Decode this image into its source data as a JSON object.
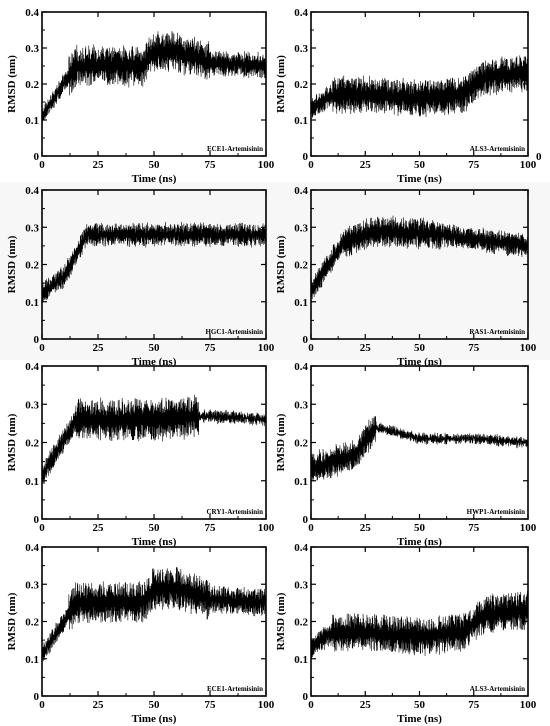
{
  "figure": {
    "background": "#ffffff",
    "line_color": "#000000"
  },
  "chart_data": [
    {
      "type": "line",
      "panel_label": "ECE1-Artemisinin",
      "xlabel": "Time (ns)",
      "ylabel": "RMSD (nm)",
      "xlim": [
        0,
        100
      ],
      "ylim": [
        0,
        0.4
      ],
      "xticks": [
        0,
        25,
        50,
        75,
        100
      ],
      "yticks": [
        0,
        0.1,
        0.2,
        0.3,
        0.4
      ],
      "grid": false,
      "profile": "ece1",
      "approx_mean_profile": {
        "x": [
          0,
          15,
          25,
          45,
          50,
          60,
          75,
          100
        ],
        "y": [
          0.11,
          0.25,
          0.25,
          0.25,
          0.29,
          0.29,
          0.26,
          0.25
        ]
      }
    },
    {
      "type": "line",
      "panel_label": "ALS3-Artemisinin",
      "xlabel": "Time (ns)",
      "ylabel": "RMSD (nm)",
      "xlim": [
        0,
        100
      ],
      "ylim": [
        0,
        0.4
      ],
      "xticks": [
        0,
        25,
        50,
        75,
        100
      ],
      "yticks": [
        0,
        0.1,
        0.2,
        0.3,
        0.4
      ],
      "grid": false,
      "profile": "als3",
      "extra_tick_label": "0",
      "approx_mean_profile": {
        "x": [
          0,
          10,
          25,
          50,
          70,
          80,
          100
        ],
        "y": [
          0.13,
          0.17,
          0.17,
          0.16,
          0.17,
          0.22,
          0.23
        ]
      }
    },
    {
      "type": "line",
      "panel_label": "HGC1-Artemisinin",
      "xlabel": "Time (ns)",
      "ylabel": "RMSD (nm)",
      "xlim": [
        0,
        100
      ],
      "ylim": [
        0,
        0.4
      ],
      "xticks": [
        0,
        25,
        50,
        75,
        100
      ],
      "yticks": [
        0,
        0.1,
        0.2,
        0.3,
        0.4
      ],
      "grid": false,
      "profile": "hgc1",
      "approx_mean_profile": {
        "x": [
          0,
          10,
          20,
          50,
          100
        ],
        "y": [
          0.12,
          0.17,
          0.28,
          0.28,
          0.28
        ]
      }
    },
    {
      "type": "line",
      "panel_label": "RAS1-Artemisinin",
      "xlabel": "Time (ns)",
      "ylabel": "RMSD (nm)",
      "xlim": [
        0,
        100
      ],
      "ylim": [
        0,
        0.4
      ],
      "xticks": [
        0,
        25,
        50,
        75,
        100
      ],
      "yticks": [
        0,
        0.1,
        0.2,
        0.3,
        0.4
      ],
      "grid": false,
      "profile": "ras1",
      "approx_mean_profile": {
        "x": [
          0,
          15,
          30,
          60,
          100
        ],
        "y": [
          0.13,
          0.26,
          0.29,
          0.28,
          0.25
        ]
      }
    },
    {
      "type": "line",
      "panel_label": "CRY1-Artemisinin",
      "xlabel": "Time (ns)",
      "ylabel": "RMSD (nm)",
      "xlim": [
        0,
        100
      ],
      "ylim": [
        0,
        0.4
      ],
      "xticks": [
        0,
        25,
        50,
        75,
        100
      ],
      "yticks": [
        0,
        0.1,
        0.2,
        0.3,
        0.4
      ],
      "grid": false,
      "profile": "cry1",
      "approx_mean_profile": {
        "x": [
          0,
          15,
          25,
          50,
          70,
          100
        ],
        "y": [
          0.11,
          0.26,
          0.26,
          0.26,
          0.27,
          0.26
        ]
      }
    },
    {
      "type": "line",
      "panel_label": "HWP1-Artemisinin",
      "xlabel": "Time (ns)",
      "ylabel": "RMSD (nm)",
      "xlim": [
        0,
        100
      ],
      "ylim": [
        0,
        0.4
      ],
      "xticks": [
        0,
        25,
        50,
        75,
        100
      ],
      "yticks": [
        0,
        0.1,
        0.2,
        0.3,
        0.4
      ],
      "grid": false,
      "profile": "hwp1",
      "approx_mean_profile": {
        "x": [
          0,
          20,
          30,
          50,
          75,
          100
        ],
        "y": [
          0.13,
          0.17,
          0.24,
          0.21,
          0.21,
          0.2
        ]
      }
    },
    {
      "type": "line",
      "panel_label": "ECE1-Artemisinin",
      "xlabel": "Time (ns)",
      "ylabel": "RMSD (nm)",
      "xlim": [
        0,
        100
      ],
      "ylim": [
        0,
        0.4
      ],
      "xticks": [
        0,
        25,
        50,
        75,
        100
      ],
      "yticks": [
        0,
        0.1,
        0.2,
        0.3,
        0.4
      ],
      "grid": false,
      "profile": "ece1",
      "approx_mean_profile": {
        "x": [
          0,
          15,
          25,
          45,
          50,
          60,
          75,
          100
        ],
        "y": [
          0.11,
          0.25,
          0.25,
          0.25,
          0.29,
          0.29,
          0.26,
          0.25
        ]
      }
    },
    {
      "type": "line",
      "panel_label": "ALS3-Artemisinin",
      "xlabel": "Time (ns)",
      "ylabel": "RMSD (nm)",
      "xlim": [
        0,
        100
      ],
      "ylim": [
        0,
        0.4
      ],
      "xticks": [
        0,
        25,
        50,
        75,
        100
      ],
      "yticks": [
        0,
        0.1,
        0.2,
        0.3,
        0.4
      ],
      "grid": false,
      "profile": "als3",
      "approx_mean_profile": {
        "x": [
          0,
          10,
          25,
          50,
          70,
          80,
          100
        ],
        "y": [
          0.13,
          0.17,
          0.17,
          0.16,
          0.17,
          0.22,
          0.23
        ]
      }
    }
  ]
}
